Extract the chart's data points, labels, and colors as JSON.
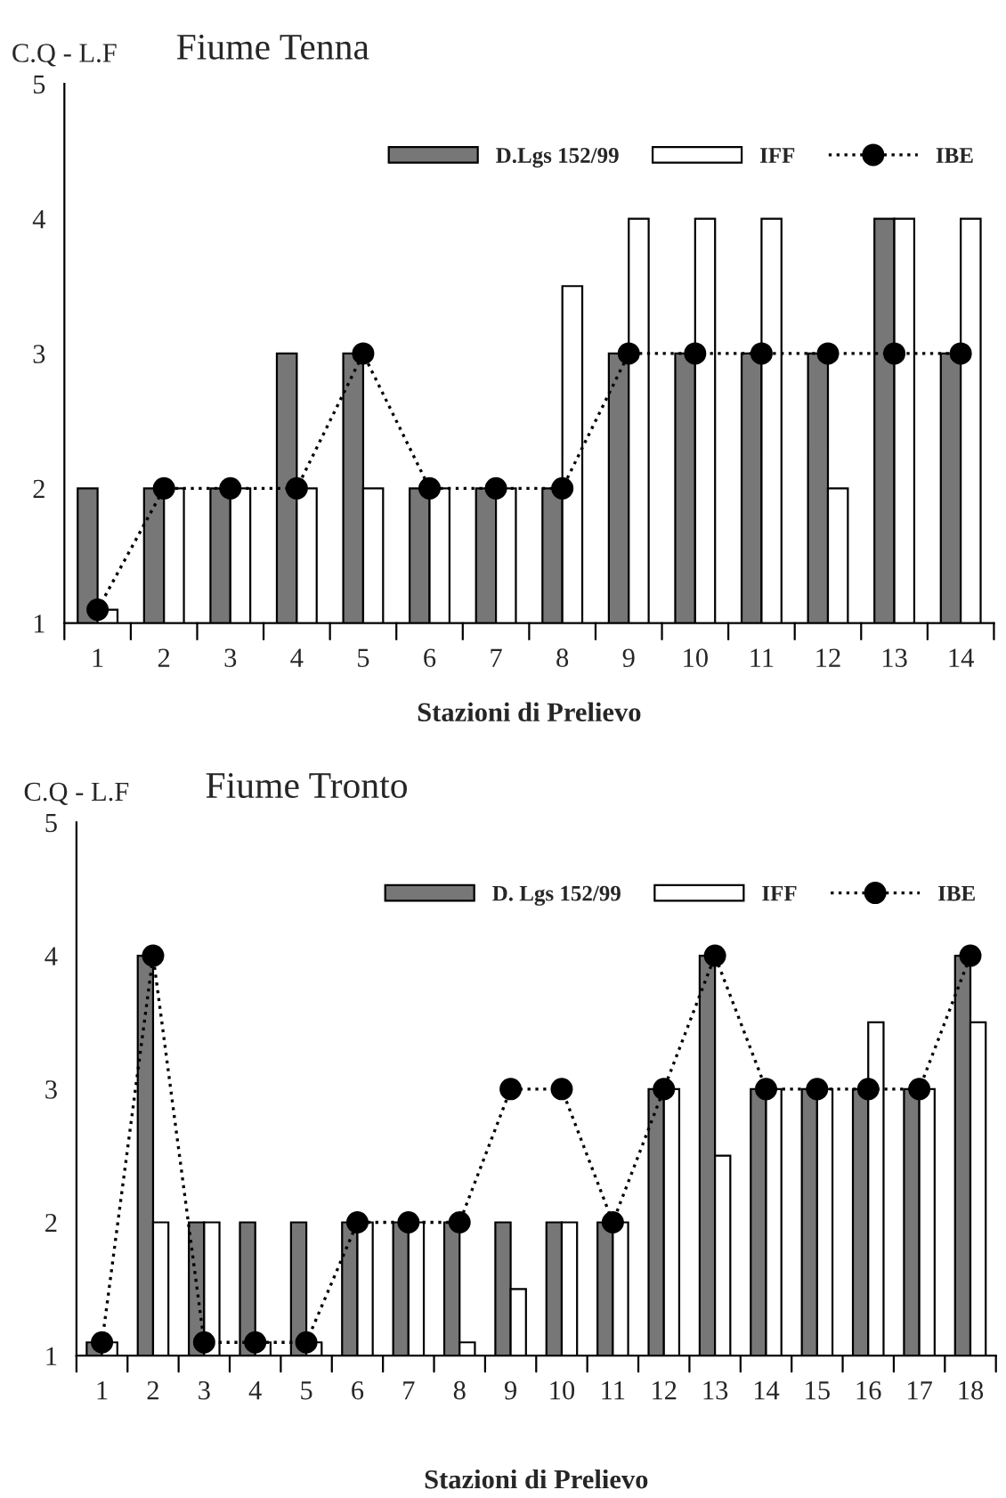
{
  "chart_data": [
    {
      "type": "bar",
      "title": "Fiume Tenna",
      "ylabel": "C.Q - L.F",
      "xlabel": "Stazioni di Prelievo",
      "categories": [
        "1",
        "2",
        "3",
        "4",
        "5",
        "6",
        "7",
        "8",
        "9",
        "10",
        "11",
        "12",
        "13",
        "14"
      ],
      "series": [
        {
          "name": "D.Lgs 152/99",
          "color": "#777777",
          "values": [
            2,
            2,
            2,
            3,
            3,
            2,
            2,
            2,
            3,
            3,
            3,
            3,
            4,
            3
          ]
        },
        {
          "name": "IFF",
          "color": "#ffffff",
          "values": [
            1.1,
            2,
            2,
            2,
            2,
            2,
            2,
            3.5,
            4,
            4,
            4,
            2,
            4,
            4
          ]
        },
        {
          "name": "IBE",
          "type": "line",
          "color": "#000000",
          "marker": "circle",
          "line_style": "dotted",
          "values": [
            1.1,
            2,
            2,
            2,
            3,
            2,
            2,
            2,
            3,
            3,
            3,
            3,
            3,
            3
          ]
        }
      ],
      "ylim": [
        1,
        5
      ],
      "yticks": [
        1,
        2,
        3,
        4,
        5
      ],
      "legend": "top right"
    },
    {
      "type": "bar",
      "title": "Fiume Tronto",
      "ylabel": "C.Q - L.F",
      "xlabel": "Stazioni di Prelievo",
      "categories": [
        "1",
        "2",
        "3",
        "4",
        "5",
        "6",
        "7",
        "8",
        "9",
        "10",
        "11",
        "12",
        "13",
        "14",
        "15",
        "16",
        "17",
        "18"
      ],
      "series": [
        {
          "name": "D. Lgs 152/99",
          "color": "#777777",
          "values": [
            1.1,
            4,
            2,
            2,
            2,
            2,
            2,
            2,
            2,
            2,
            2,
            3,
            4,
            3,
            3,
            3,
            3,
            4
          ]
        },
        {
          "name": "IFF",
          "color": "#ffffff",
          "values": [
            1.1,
            2,
            2,
            1.1,
            1.1,
            2,
            2,
            1.1,
            1.5,
            2,
            2,
            3,
            2.5,
            3,
            3,
            3.5,
            3,
            3.5
          ]
        },
        {
          "name": "IBE",
          "type": "line",
          "color": "#000000",
          "marker": "circle",
          "line_style": "dotted",
          "values": [
            1.1,
            4,
            1.1,
            1.1,
            1.1,
            2,
            2,
            2,
            3,
            3,
            2,
            3,
            4,
            3,
            3,
            3,
            3,
            4
          ]
        }
      ],
      "ylim": [
        1,
        5
      ],
      "yticks": [
        1,
        2,
        3,
        4,
        5
      ],
      "legend": "top right"
    }
  ]
}
